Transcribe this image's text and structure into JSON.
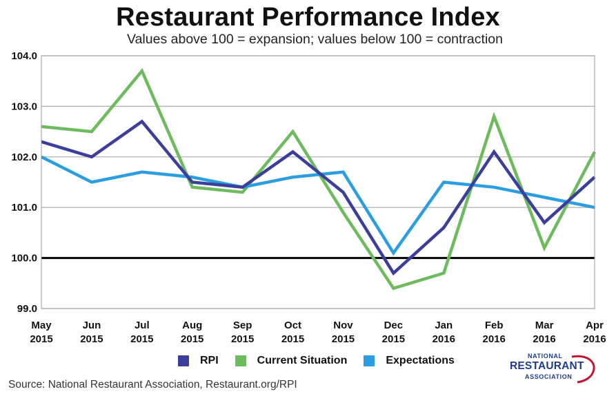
{
  "title": "Restaurant Performance Index",
  "subtitle": "Values above 100 = expansion; values below 100 = contraction",
  "source": "Source: National Restaurant Association, Restaurant.org/RPI",
  "logo": {
    "line1": "NATIONAL",
    "line2": "RESTAURANT",
    "line3": "ASSOCIATION"
  },
  "chart_data": {
    "type": "line",
    "title": "Restaurant Performance Index",
    "subtitle": "Values above 100 = expansion; values below 100 = contraction",
    "categories": [
      [
        "May",
        "2015"
      ],
      [
        "Jun",
        "2015"
      ],
      [
        "Jul",
        "2015"
      ],
      [
        "Aug",
        "2015"
      ],
      [
        "Sep",
        "2015"
      ],
      [
        "Oct",
        "2015"
      ],
      [
        "Nov",
        "2015"
      ],
      [
        "Dec",
        "2015"
      ],
      [
        "Jan",
        "2016"
      ],
      [
        "Feb",
        "2016"
      ],
      [
        "Mar",
        "2016"
      ],
      [
        "Apr",
        "2016"
      ]
    ],
    "ylim": [
      99.0,
      104.0
    ],
    "yticks": [
      "99.0",
      "100.0",
      "101.0",
      "102.0",
      "103.0",
      "104.0"
    ],
    "reference_line": 100.0,
    "grid": true,
    "legend_position": "bottom",
    "series": [
      {
        "name": "RPI",
        "color": "#3b3f9b",
        "values": [
          102.3,
          102.0,
          102.7,
          101.5,
          101.4,
          102.1,
          101.3,
          99.7,
          100.6,
          102.1,
          100.7,
          101.6
        ]
      },
      {
        "name": "Current Situation",
        "color": "#6dbb5e",
        "values": [
          102.6,
          102.5,
          103.7,
          101.4,
          101.3,
          102.5,
          100.9,
          99.4,
          99.7,
          102.8,
          100.2,
          102.1
        ]
      },
      {
        "name": "Expectations",
        "color": "#2a9ee0",
        "values": [
          102.0,
          101.5,
          101.7,
          101.6,
          101.4,
          101.6,
          101.7,
          100.1,
          101.5,
          101.4,
          101.2,
          101.0
        ]
      }
    ]
  }
}
